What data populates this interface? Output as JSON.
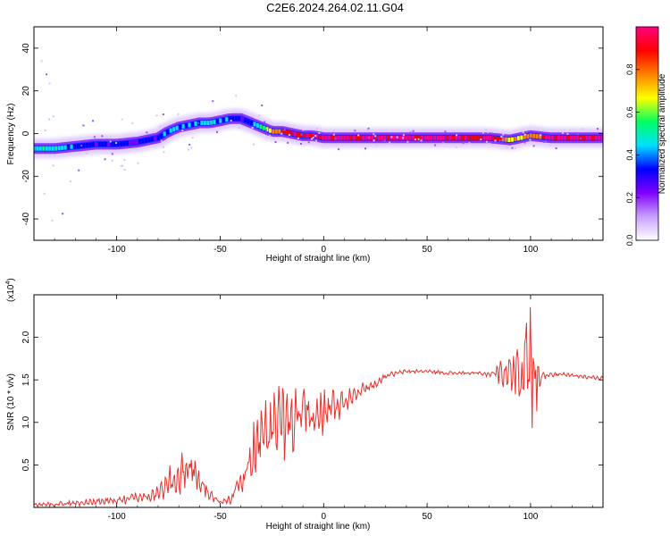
{
  "title": "C2E6.2024.264.02.11.G04",
  "chart_data": [
    {
      "type": "heatmap",
      "xlabel": "Height of straight line (km)",
      "ylabel": "Frequency (Hz)",
      "xlim": [
        -140,
        135
      ],
      "ylim": [
        -50,
        50
      ],
      "xticks": [
        -100,
        -50,
        0,
        50,
        100
      ],
      "yticks": [
        -40,
        -20,
        0,
        20,
        40
      ],
      "colorbar": {
        "label": "Normalized spectral amplitude",
        "range": [
          0,
          1
        ],
        "ticks": [
          "0.0",
          "0.2",
          "0.4",
          "0.6",
          "0.8"
        ],
        "colors": [
          "#ffffff",
          "#c8a0ff",
          "#8000ff",
          "#0000ff",
          "#00e0ff",
          "#00ff60",
          "#ffff00",
          "#ff8000",
          "#ff0000",
          "#ff0080"
        ]
      },
      "ridge": {
        "x": [
          -138,
          -130,
          -120,
          -110,
          -100,
          -90,
          -80,
          -75,
          -70,
          -65,
          -60,
          -55,
          -50,
          -45,
          -40,
          -35,
          -30,
          -25,
          -20,
          -15,
          -10,
          -5,
          0,
          10,
          20,
          40,
          60,
          80,
          90,
          100,
          110,
          135
        ],
        "y": [
          -7,
          -7,
          -6,
          -5,
          -5,
          -4,
          -2,
          1,
          3,
          4,
          5,
          5,
          6,
          7,
          7,
          5,
          3,
          1,
          1,
          0,
          -1,
          -1,
          -2,
          -2,
          -2,
          -2,
          -2,
          -2,
          -3,
          -1,
          -2,
          -2
        ],
        "amplitude": [
          0.45,
          0.45,
          0.35,
          0.32,
          0.3,
          0.3,
          0.3,
          0.4,
          0.45,
          0.4,
          0.4,
          0.45,
          0.45,
          0.35,
          0.3,
          0.35,
          0.55,
          0.75,
          0.85,
          0.9,
          0.92,
          0.95,
          0.97,
          0.97,
          0.98,
          0.98,
          0.98,
          0.95,
          0.7,
          0.8,
          0.97,
          0.98
        ]
      }
    },
    {
      "type": "line",
      "xlabel": "Height of straight line (km)",
      "ylabel": "SNR (10 * v/v)",
      "multiplier_label": "(x10",
      "multiplier_exponent": "4",
      "xlim": [
        -140,
        135
      ],
      "ylim": [
        0,
        2.5
      ],
      "xticks": [
        -100,
        -50,
        0,
        50,
        100
      ],
      "yticks": [
        0.5,
        1.0,
        1.5,
        2.0
      ],
      "ytick_labels": [
        "0.5",
        "1.0",
        "1.5",
        "2.0"
      ],
      "series": [
        {
          "color": "#e8302a",
          "x": [
            -140,
            -120,
            -100,
            -90,
            -80,
            -75,
            -70,
            -65,
            -60,
            -55,
            -50,
            -45,
            -40,
            -35,
            -30,
            -25,
            -20,
            -15,
            -10,
            -5,
            0,
            5,
            10,
            15,
            20,
            25,
            30,
            40,
            50,
            60,
            70,
            80,
            90,
            95,
            100,
            103,
            105,
            110,
            120,
            135
          ],
          "y": [
            0.03,
            0.05,
            0.08,
            0.12,
            0.15,
            0.3,
            0.35,
            0.5,
            0.3,
            0.15,
            0.05,
            0.1,
            0.3,
            0.55,
            0.8,
            0.9,
            1.0,
            1.0,
            1.05,
            1.05,
            1.1,
            1.2,
            1.25,
            1.35,
            1.4,
            1.45,
            1.55,
            1.6,
            1.6,
            1.58,
            1.58,
            1.57,
            1.6,
            1.7,
            1.65,
            1.5,
            1.55,
            1.57,
            1.55,
            1.52
          ],
          "noise_amplitude": [
            0.02,
            0.03,
            0.05,
            0.06,
            0.08,
            0.15,
            0.2,
            0.2,
            0.12,
            0.06,
            0.02,
            0.05,
            0.15,
            0.35,
            0.4,
            0.4,
            0.4,
            0.35,
            0.35,
            0.3,
            0.25,
            0.2,
            0.12,
            0.08,
            0.06,
            0.04,
            0.03,
            0.02,
            0.02,
            0.02,
            0.02,
            0.03,
            0.2,
            0.6,
            0.6,
            0.45,
            0.05,
            0.03,
            0.02,
            0.02
          ]
        }
      ]
    }
  ]
}
